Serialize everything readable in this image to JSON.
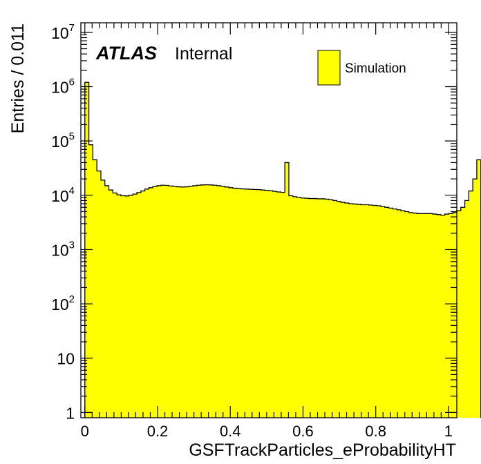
{
  "chart_data": {
    "type": "histogram",
    "title": "",
    "xlabel": "GSFTrackParticles_eProbabilityHT",
    "ylabel": "Entries / 0.011",
    "x_scale": "linear",
    "y_scale": "log",
    "xlim": [
      -0.011,
      1.023
    ],
    "ylim": [
      0.8,
      15000000
    ],
    "x_tick_labels": [
      "0",
      "0.2",
      "0.4",
      "0.6",
      "0.8",
      "1"
    ],
    "x_tick_values": [
      0,
      0.2,
      0.4,
      0.6,
      0.8,
      1.0
    ],
    "y_tick_labels": [
      {
        "value": 1,
        "base": "1",
        "exp": ""
      },
      {
        "value": 10,
        "base": "10",
        "exp": ""
      },
      {
        "value": 100,
        "base": "10",
        "exp": "2"
      },
      {
        "value": 1000,
        "base": "10",
        "exp": "3"
      },
      {
        "value": 10000,
        "base": "10",
        "exp": "4"
      },
      {
        "value": 100000,
        "base": "10",
        "exp": "5"
      },
      {
        "value": 1000000,
        "base": "10",
        "exp": "6"
      },
      {
        "value": 10000000,
        "base": "10",
        "exp": "7"
      }
    ],
    "bin_width": 0.011,
    "bin_start": -0.011,
    "fill_color": "#ffff00",
    "line_color": "#000000",
    "legend_position": "top-right",
    "series": [
      {
        "name": "Simulation",
        "values": [
          1200000,
          85000,
          45000,
          28000,
          19000,
          15000,
          12500,
          11000,
          10200,
          9800,
          9700,
          10000,
          10500,
          11200,
          12000,
          13000,
          13800,
          14500,
          15000,
          15300,
          15200,
          14800,
          14500,
          14300,
          14200,
          14300,
          14600,
          15000,
          15300,
          15500,
          15600,
          15500,
          15300,
          15000,
          14600,
          14200,
          13800,
          13500,
          13300,
          13100,
          13000,
          12900,
          12800,
          12700,
          12500,
          12300,
          12100,
          11800,
          11500,
          11300,
          40000,
          9800,
          9400,
          9100,
          8900,
          8800,
          8700,
          8700,
          8600,
          8600,
          8500,
          8300,
          8000,
          7700,
          7400,
          7200,
          7000,
          6900,
          6800,
          6700,
          6700,
          6600,
          6500,
          6400,
          6200,
          6000,
          5800,
          5600,
          5400,
          5200,
          5000,
          4800,
          4700,
          4600,
          4600,
          4600,
          4600,
          4500,
          4400,
          4300,
          4500,
          4600,
          4800,
          5200,
          6000,
          8000,
          12000,
          20000,
          45000
        ]
      }
    ]
  },
  "annotations": {
    "experiment": "ATLAS",
    "status": "Internal"
  }
}
